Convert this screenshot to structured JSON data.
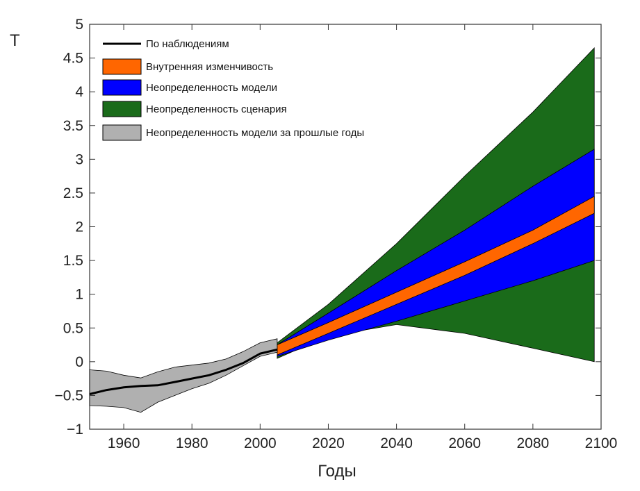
{
  "chart_data": {
    "type": "area",
    "xlabel": "Годы",
    "ylabel": "T",
    "xlim": [
      1950,
      2100
    ],
    "ylim": [
      -1,
      5
    ],
    "xticks": [
      "1960",
      "1980",
      "2000",
      "2020",
      "2040",
      "2060",
      "2080",
      "2100"
    ],
    "yticks": [
      "−1",
      "−0.5",
      "0",
      "0.5",
      "1",
      "1.5",
      "2",
      "2.5",
      "3",
      "3.5",
      "4",
      "4.5",
      "5"
    ],
    "grid": false,
    "legend_position": "top-left",
    "series": [
      {
        "name": "По наблюдениям",
        "kind": "line",
        "color": "#000000",
        "x": [
          1950,
          1955,
          1960,
          1965,
          1970,
          1975,
          1980,
          1985,
          1990,
          1995,
          2000,
          2005
        ],
        "y": [
          -0.48,
          -0.42,
          -0.38,
          -0.36,
          -0.35,
          -0.3,
          -0.25,
          -0.2,
          -0.12,
          -0.02,
          0.12,
          0.18
        ]
      },
      {
        "name": "Внутренняя изменчивость",
        "kind": "band",
        "color": "#ff6600",
        "x": [
          2005,
          2020,
          2040,
          2060,
          2080,
          2098
        ],
        "lower": [
          0.1,
          0.42,
          0.85,
          1.28,
          1.75,
          2.2
        ],
        "upper": [
          0.25,
          0.58,
          1.03,
          1.48,
          1.95,
          2.45
        ]
      },
      {
        "name": "Неопределенность модели",
        "kind": "band",
        "color": "#0000ff",
        "x": [
          2005,
          2020,
          2040,
          2060,
          2080,
          2098
        ],
        "lower": [
          0.08,
          0.32,
          0.6,
          0.9,
          1.2,
          1.5
        ],
        "upper": [
          0.25,
          0.72,
          1.35,
          1.95,
          2.6,
          3.15
        ]
      },
      {
        "name": "Неопределенность сценария",
        "kind": "band",
        "color": "#1a6b1a",
        "x": [
          2005,
          2020,
          2040,
          2060,
          2080,
          2098
        ],
        "lower": [
          0.05,
          0.38,
          0.55,
          0.42,
          0.2,
          0.0
        ],
        "upper": [
          0.28,
          0.85,
          1.75,
          2.75,
          3.7,
          4.65
        ]
      },
      {
        "name": "Неопределенность модели за прошлые годы",
        "kind": "band",
        "color": "#b0b0b0",
        "x": [
          1950,
          1955,
          1960,
          1965,
          1970,
          1975,
          1980,
          1985,
          1990,
          1995,
          2000,
          2005
        ],
        "lower": [
          -0.65,
          -0.66,
          -0.68,
          -0.75,
          -0.6,
          -0.5,
          -0.4,
          -0.32,
          -0.2,
          -0.06,
          0.08,
          0.14
        ],
        "upper": [
          -0.12,
          -0.14,
          -0.2,
          -0.24,
          -0.15,
          -0.08,
          -0.05,
          -0.02,
          0.04,
          0.15,
          0.28,
          0.34
        ]
      }
    ]
  }
}
